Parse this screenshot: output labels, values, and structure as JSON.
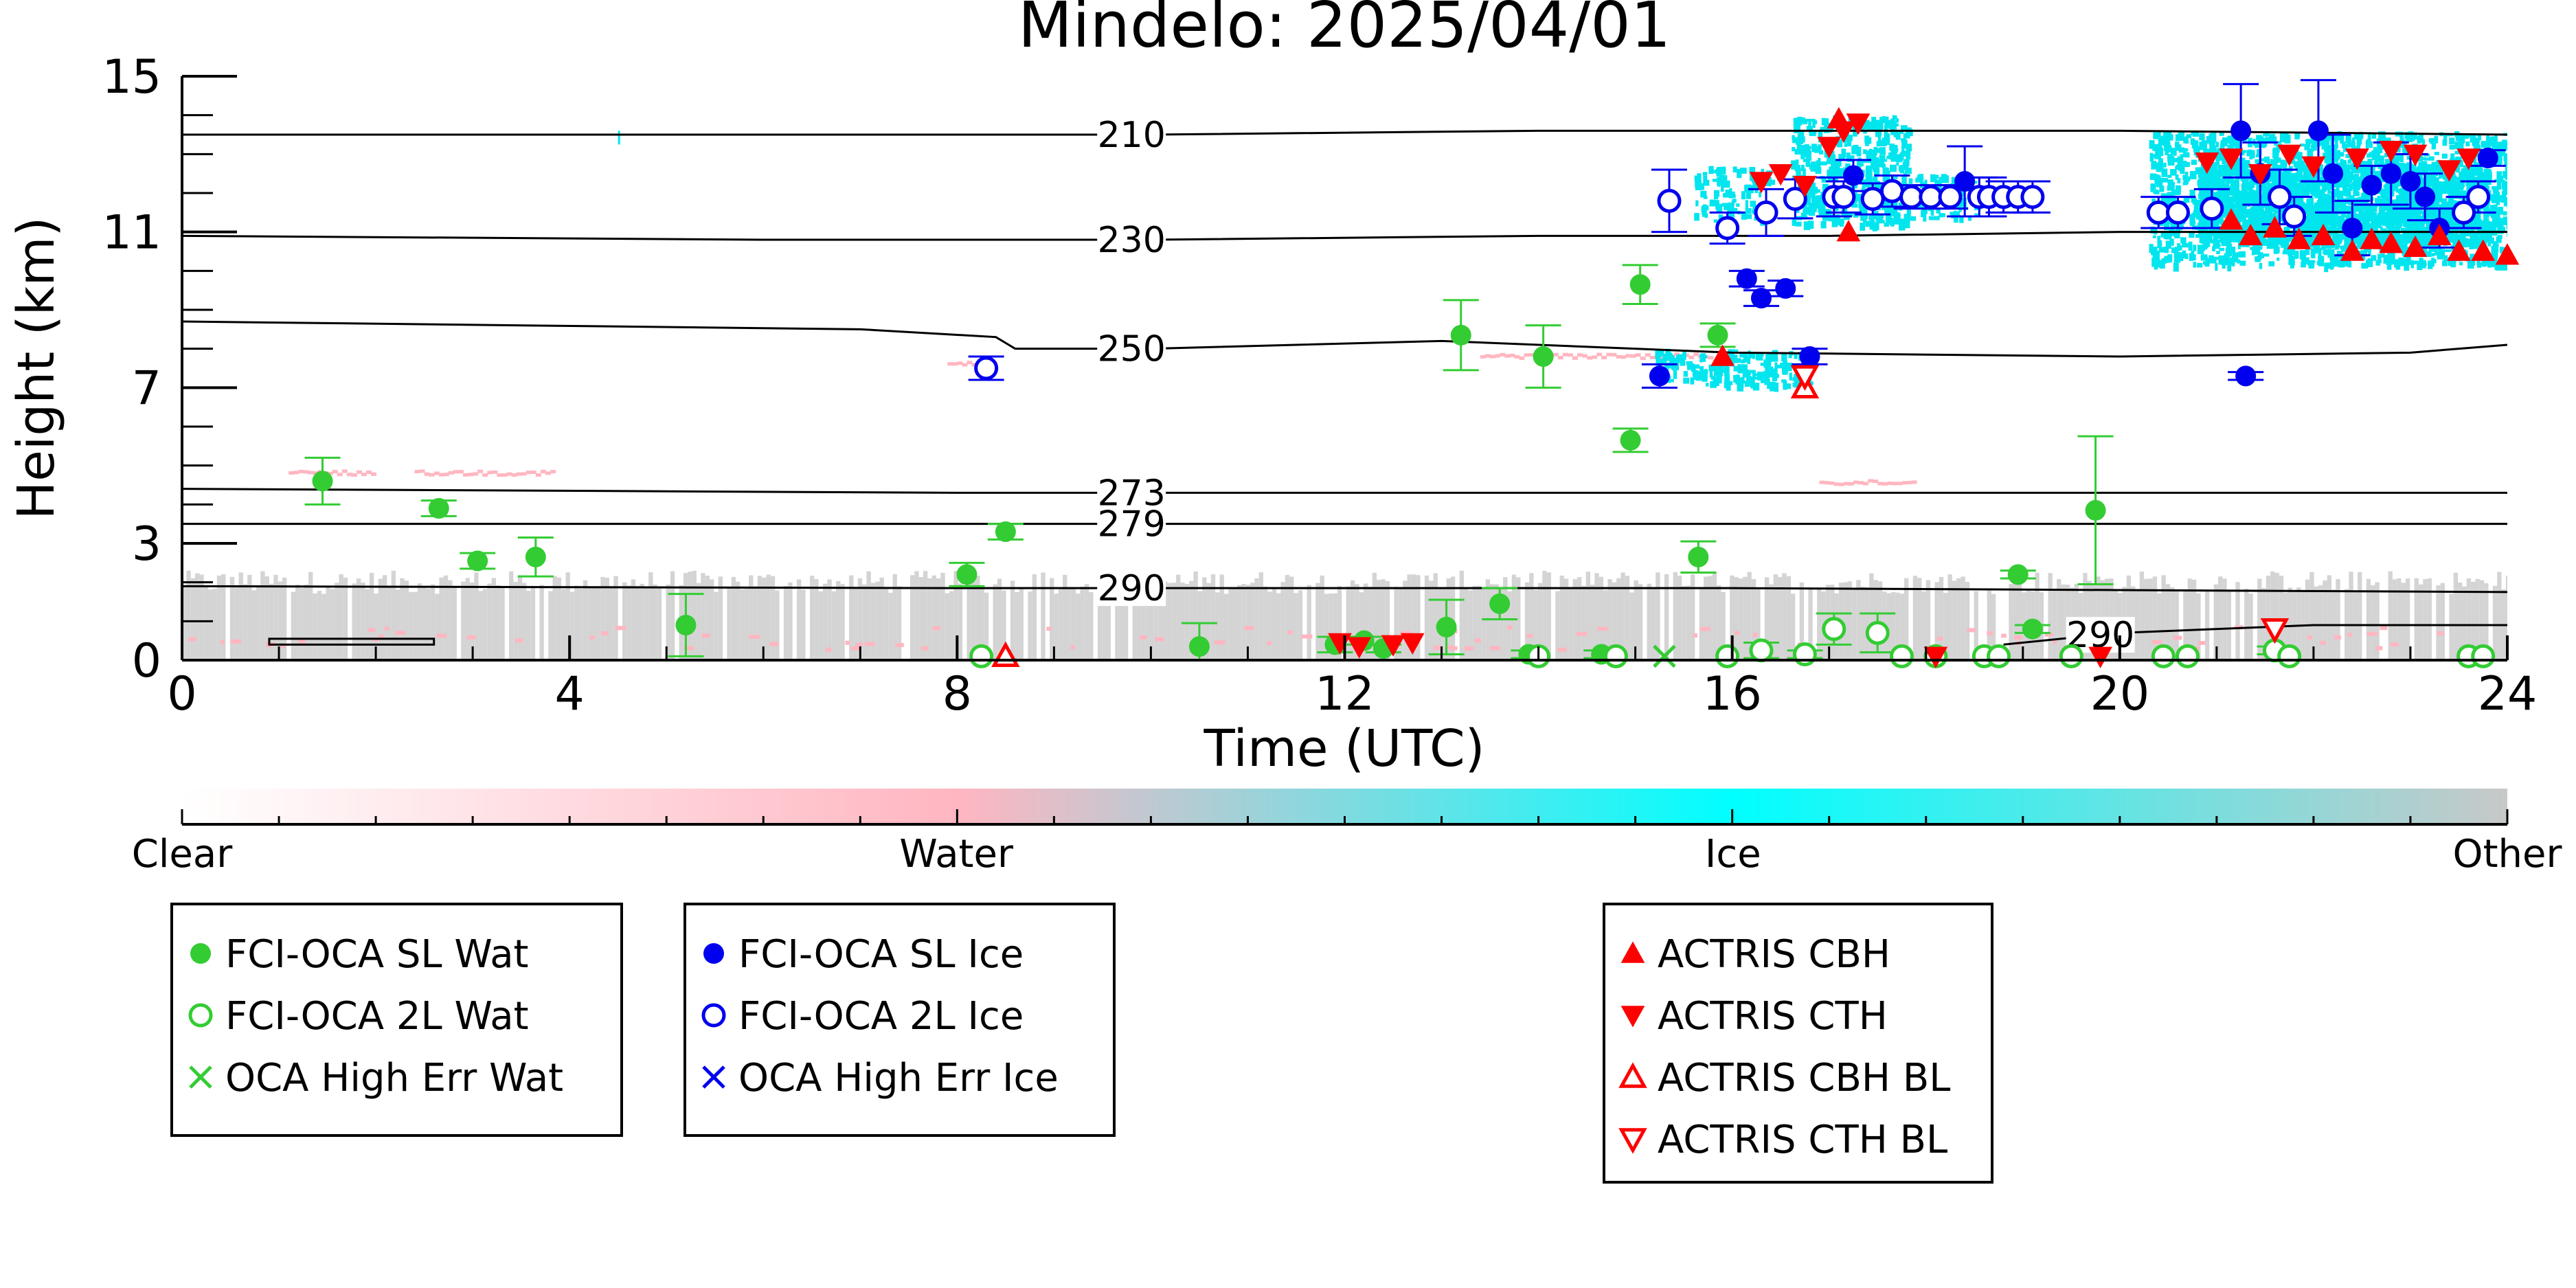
{
  "chart_data": {
    "type": "scatter",
    "title": "Mindelo: 2025/04/01",
    "xlabel": "Time (UTC)",
    "ylabel": "Height (km)",
    "xlim": [
      0,
      24
    ],
    "ylim": [
      0,
      15
    ],
    "xticks": [
      0,
      4,
      8,
      12,
      16,
      20,
      24
    ],
    "yticks": [
      0,
      3,
      7,
      11,
      15
    ],
    "grid": false,
    "colorbar": {
      "labels": [
        {
          "text": "Clear",
          "frac": 0.0
        },
        {
          "text": "Water",
          "frac": 0.333
        },
        {
          "text": "Ice",
          "frac": 0.667
        },
        {
          "text": "Other",
          "frac": 1.0
        }
      ],
      "colors": [
        "#ffffff",
        "#ffb6c1",
        "#00ffff",
        "#c8c8c8"
      ]
    },
    "colors": {
      "water": "#33cc33",
      "ice": "#0000ee",
      "actris": "#ff0000",
      "background_cloud": "#cccccc",
      "ice_cloud": "#00e5ee",
      "water_cloud": "#ffb6c1",
      "contour": "#000000"
    },
    "temperature_contours": [
      {
        "label": "210",
        "label_x": 9.8,
        "points": [
          [
            0,
            13.5
          ],
          [
            6,
            13.5
          ],
          [
            10,
            13.5
          ],
          [
            14,
            13.6
          ],
          [
            17,
            13.6
          ],
          [
            20,
            13.6
          ],
          [
            24,
            13.5
          ]
        ]
      },
      {
        "label": "230",
        "label_x": 9.8,
        "points": [
          [
            0,
            10.9
          ],
          [
            6,
            10.8
          ],
          [
            10,
            10.8
          ],
          [
            14,
            10.9
          ],
          [
            17,
            10.9
          ],
          [
            20,
            11.0
          ],
          [
            24,
            11.0
          ]
        ]
      },
      {
        "label": "250",
        "label_x": 9.8,
        "points": [
          [
            0,
            8.7
          ],
          [
            7,
            8.5
          ],
          [
            8.4,
            8.3
          ],
          [
            8.6,
            8.0
          ],
          [
            10,
            8.0
          ],
          [
            13,
            8.2
          ],
          [
            15,
            8.0
          ],
          [
            16,
            7.9
          ],
          [
            20,
            7.8
          ],
          [
            23,
            7.9
          ],
          [
            24,
            8.1
          ]
        ]
      },
      {
        "label": "273",
        "label_x": 9.8,
        "points": [
          [
            0,
            4.4
          ],
          [
            8,
            4.3
          ],
          [
            12,
            4.3
          ],
          [
            16,
            4.3
          ],
          [
            20,
            4.3
          ],
          [
            24,
            4.3
          ]
        ]
      },
      {
        "label": "279",
        "label_x": 9.8,
        "points": [
          [
            0,
            3.5
          ],
          [
            8,
            3.5
          ],
          [
            12,
            3.5
          ],
          [
            16,
            3.5
          ],
          [
            20,
            3.5
          ],
          [
            24,
            3.5
          ]
        ]
      },
      {
        "label": "290",
        "label_x": 9.8,
        "points": [
          [
            0,
            1.9
          ],
          [
            8,
            1.85
          ],
          [
            12,
            1.85
          ],
          [
            16,
            1.85
          ],
          [
            20,
            1.8
          ],
          [
            24,
            1.75
          ]
        ]
      },
      {
        "label": "290",
        "label_x": 19.8,
        "points": [
          [
            18.8,
            0.4
          ],
          [
            20,
            0.7
          ],
          [
            22,
            0.9
          ],
          [
            24,
            0.9
          ]
        ]
      }
    ],
    "series": [
      {
        "name": "FCI-OCA SL Wat",
        "marker": "filled-circle",
        "color": "#33cc33",
        "points": [
          {
            "x": 1.45,
            "y": 4.6,
            "err": 0.6
          },
          {
            "x": 2.65,
            "y": 3.9,
            "err": 0.2
          },
          {
            "x": 3.05,
            "y": 2.55,
            "err": 0.2
          },
          {
            "x": 3.65,
            "y": 2.65,
            "err": 0.5
          },
          {
            "x": 5.2,
            "y": 0.9,
            "err": 0.8
          },
          {
            "x": 8.1,
            "y": 2.2,
            "err": 0.3
          },
          {
            "x": 8.5,
            "y": 3.3,
            "err": 0.2
          },
          {
            "x": 10.5,
            "y": 0.35,
            "err": 0.6
          },
          {
            "x": 11.9,
            "y": 0.4,
            "err": 0.2
          },
          {
            "x": 12.2,
            "y": 0.5,
            "err": 0.1
          },
          {
            "x": 12.4,
            "y": 0.3,
            "err": 0.1
          },
          {
            "x": 13.05,
            "y": 0.85,
            "err": 0.7
          },
          {
            "x": 13.2,
            "y": 8.35,
            "err": 0.9
          },
          {
            "x": 13.6,
            "y": 1.45,
            "err": 0.4
          },
          {
            "x": 14.05,
            "y": 7.8,
            "err": 0.8
          },
          {
            "x": 14.95,
            "y": 5.65,
            "err": 0.3
          },
          {
            "x": 15.05,
            "y": 9.65,
            "err": 0.5
          },
          {
            "x": 15.65,
            "y": 2.65,
            "err": 0.4
          },
          {
            "x": 15.85,
            "y": 8.35,
            "err": 0.3
          },
          {
            "x": 18.95,
            "y": 2.2,
            "err": 0.1
          },
          {
            "x": 19.75,
            "y": 3.85,
            "err": 1.9
          },
          {
            "x": 19.1,
            "y": 0.8,
            "err": 0.1
          },
          {
            "x": 13.9,
            "y": 0.15,
            "err": 0.1
          },
          {
            "x": 14.65,
            "y": 0.15,
            "err": 0.1
          }
        ]
      },
      {
        "name": "FCI-OCA 2L Wat",
        "marker": "open-circle",
        "color": "#33cc33",
        "points": [
          {
            "x": 8.25,
            "y": 0.1,
            "err": 0
          },
          {
            "x": 14.0,
            "y": 0.1,
            "err": 0
          },
          {
            "x": 14.8,
            "y": 0.1,
            "err": 0
          },
          {
            "x": 15.95,
            "y": 0.1,
            "err": 0
          },
          {
            "x": 16.3,
            "y": 0.25,
            "err": 0.2
          },
          {
            "x": 16.75,
            "y": 0.15,
            "err": 0.1
          },
          {
            "x": 17.05,
            "y": 0.8,
            "err": 0.4
          },
          {
            "x": 17.5,
            "y": 0.7,
            "err": 0.5
          },
          {
            "x": 17.75,
            "y": 0.1,
            "err": 0
          },
          {
            "x": 18.1,
            "y": 0.1,
            "err": 0
          },
          {
            "x": 18.6,
            "y": 0.1,
            "err": 0
          },
          {
            "x": 18.75,
            "y": 0.1,
            "err": 0
          },
          {
            "x": 19.5,
            "y": 0.1,
            "err": 0
          },
          {
            "x": 20.45,
            "y": 0.1,
            "err": 0
          },
          {
            "x": 20.7,
            "y": 0.1,
            "err": 0
          },
          {
            "x": 21.6,
            "y": 0.25,
            "err": 0.1
          },
          {
            "x": 21.75,
            "y": 0.1,
            "err": 0
          },
          {
            "x": 23.6,
            "y": 0.1,
            "err": 0
          },
          {
            "x": 23.75,
            "y": 0.1,
            "err": 0
          }
        ]
      },
      {
        "name": "OCA High Err Wat",
        "marker": "x",
        "color": "#33cc33",
        "points": [
          {
            "x": 15.3,
            "y": 0.1
          }
        ]
      },
      {
        "name": "FCI-OCA SL Ice",
        "marker": "filled-circle",
        "color": "#0000ee",
        "points": [
          {
            "x": 15.25,
            "y": 7.3,
            "err": 0.3
          },
          {
            "x": 16.15,
            "y": 9.8,
            "err": 0.2
          },
          {
            "x": 16.3,
            "y": 9.3,
            "err": 0.2
          },
          {
            "x": 16.55,
            "y": 9.55,
            "err": 0.2
          },
          {
            "x": 16.8,
            "y": 7.8,
            "err": 0.2
          },
          {
            "x": 17.25,
            "y": 12.45,
            "err": 0.4
          },
          {
            "x": 18.4,
            "y": 12.3,
            "err": 0.9
          },
          {
            "x": 21.25,
            "y": 13.6,
            "err": 1.2
          },
          {
            "x": 21.3,
            "y": 7.3,
            "err": 0.1
          },
          {
            "x": 21.45,
            "y": 12.5,
            "err": 0.8
          },
          {
            "x": 22.05,
            "y": 13.6,
            "err": 1.3
          },
          {
            "x": 22.2,
            "y": 12.5,
            "err": 1.0
          },
          {
            "x": 22.4,
            "y": 11.1,
            "err": 0.7
          },
          {
            "x": 22.6,
            "y": 12.2,
            "err": 0.5
          },
          {
            "x": 22.8,
            "y": 12.5,
            "err": 0.8
          },
          {
            "x": 23.0,
            "y": 12.3,
            "err": 0.7
          },
          {
            "x": 23.15,
            "y": 11.9,
            "err": 0.6
          },
          {
            "x": 23.3,
            "y": 11.1,
            "err": 0.5
          },
          {
            "x": 23.8,
            "y": 12.9,
            "err": 0.2
          }
        ]
      },
      {
        "name": "FCI-OCA 2L Ice",
        "marker": "open-circle",
        "color": "#0000ee",
        "points": [
          {
            "x": 8.3,
            "y": 7.5,
            "err": 0.3
          },
          {
            "x": 15.35,
            "y": 11.8,
            "err": 0.8
          },
          {
            "x": 15.95,
            "y": 11.1,
            "err": 0.4
          },
          {
            "x": 16.35,
            "y": 11.5,
            "err": 0.6
          },
          {
            "x": 16.65,
            "y": 11.85,
            "err": 0.5
          },
          {
            "x": 17.05,
            "y": 11.9,
            "err": 0.5
          },
          {
            "x": 17.15,
            "y": 11.9,
            "err": 0.4
          },
          {
            "x": 17.45,
            "y": 11.85,
            "err": 0.4
          },
          {
            "x": 17.65,
            "y": 12.05,
            "err": 0.4
          },
          {
            "x": 17.85,
            "y": 11.9,
            "err": 0.3
          },
          {
            "x": 18.05,
            "y": 11.9,
            "err": 0.3
          },
          {
            "x": 18.25,
            "y": 11.9,
            "err": 0.3
          },
          {
            "x": 18.55,
            "y": 11.9,
            "err": 0.5
          },
          {
            "x": 18.65,
            "y": 11.9,
            "err": 0.5
          },
          {
            "x": 18.8,
            "y": 11.9,
            "err": 0.4
          },
          {
            "x": 18.95,
            "y": 11.9,
            "err": 0.4
          },
          {
            "x": 19.1,
            "y": 11.9,
            "err": 0.4
          },
          {
            "x": 20.4,
            "y": 11.5,
            "err": 0.4
          },
          {
            "x": 20.6,
            "y": 11.5,
            "err": 0.4
          },
          {
            "x": 20.95,
            "y": 11.6,
            "err": 0.5
          },
          {
            "x": 21.65,
            "y": 11.9,
            "err": 0.7
          },
          {
            "x": 21.8,
            "y": 11.4,
            "err": 0.5
          },
          {
            "x": 23.55,
            "y": 11.5,
            "err": 0.4
          },
          {
            "x": 23.7,
            "y": 11.9,
            "err": 0.4
          }
        ]
      },
      {
        "name": "ACTRIS CBH",
        "marker": "triangle-up",
        "color": "#ff0000",
        "points": [
          {
            "x": 15.9,
            "y": 7.8
          },
          {
            "x": 17.2,
            "y": 11.0
          },
          {
            "x": 21.15,
            "y": 11.3
          },
          {
            "x": 21.35,
            "y": 10.9
          },
          {
            "x": 21.6,
            "y": 11.1
          },
          {
            "x": 21.85,
            "y": 10.8
          },
          {
            "x": 22.1,
            "y": 10.9
          },
          {
            "x": 22.4,
            "y": 10.5
          },
          {
            "x": 22.6,
            "y": 10.8
          },
          {
            "x": 22.8,
            "y": 10.7
          },
          {
            "x": 23.05,
            "y": 10.6
          },
          {
            "x": 23.3,
            "y": 10.9
          },
          {
            "x": 23.5,
            "y": 10.5
          },
          {
            "x": 23.75,
            "y": 10.5
          },
          {
            "x": 24.0,
            "y": 10.4
          },
          {
            "x": 17.1,
            "y": 13.9
          }
        ]
      },
      {
        "name": "ACTRIS CTH",
        "marker": "triangle-down",
        "color": "#ff0000",
        "points": [
          {
            "x": 11.95,
            "y": 0.45
          },
          {
            "x": 12.15,
            "y": 0.35
          },
          {
            "x": 12.5,
            "y": 0.4
          },
          {
            "x": 12.7,
            "y": 0.45
          },
          {
            "x": 16.3,
            "y": 12.3
          },
          {
            "x": 16.5,
            "y": 12.5
          },
          {
            "x": 16.75,
            "y": 12.2
          },
          {
            "x": 17.0,
            "y": 13.2
          },
          {
            "x": 17.15,
            "y": 13.6
          },
          {
            "x": 17.3,
            "y": 13.8
          },
          {
            "x": 20.9,
            "y": 12.8
          },
          {
            "x": 21.15,
            "y": 12.9
          },
          {
            "x": 21.45,
            "y": 12.5
          },
          {
            "x": 21.75,
            "y": 13.0
          },
          {
            "x": 22.0,
            "y": 12.7
          },
          {
            "x": 22.45,
            "y": 12.9
          },
          {
            "x": 22.8,
            "y": 13.1
          },
          {
            "x": 23.05,
            "y": 13.0
          },
          {
            "x": 23.4,
            "y": 12.6
          },
          {
            "x": 23.6,
            "y": 12.9
          },
          {
            "x": 18.1,
            "y": 0.1
          },
          {
            "x": 19.8,
            "y": 0.1
          }
        ]
      },
      {
        "name": "ACTRIS CBH BL",
        "marker": "open-triangle-up",
        "color": "#ff0000",
        "points": [
          {
            "x": 16.75,
            "y": 7.0
          },
          {
            "x": 8.5,
            "y": 0.1
          }
        ]
      },
      {
        "name": "ACTRIS CTH BL",
        "marker": "open-triangle-down",
        "color": "#ff0000",
        "points": [
          {
            "x": 16.75,
            "y": 7.3
          },
          {
            "x": 21.6,
            "y": 0.8
          }
        ]
      }
    ],
    "legends": [
      {
        "entries": [
          "FCI-OCA SL Wat",
          "FCI-OCA 2L Wat",
          "OCA High Err Wat"
        ]
      },
      {
        "entries": [
          "FCI-OCA SL Ice",
          "FCI-OCA 2L Ice",
          "OCA High Err Ice"
        ]
      },
      {
        "entries": [
          "ACTRIS CBH",
          "ACTRIS CTH",
          "ACTRIS CBH BL",
          "ACTRIS CTH BL"
        ]
      }
    ],
    "legend_markers": {
      "FCI-OCA SL Wat": [
        "filled-circle",
        "#33cc33"
      ],
      "FCI-OCA 2L Wat": [
        "open-circle",
        "#33cc33"
      ],
      "OCA High Err Wat": [
        "x",
        "#33cc33"
      ],
      "FCI-OCA SL Ice": [
        "filled-circle",
        "#0000ee"
      ],
      "FCI-OCA 2L Ice": [
        "open-circle",
        "#0000ee"
      ],
      "OCA High Err Ice": [
        "x",
        "#0000ee"
      ],
      "ACTRIS CBH": [
        "triangle-up",
        "#ff0000"
      ],
      "ACTRIS CTH": [
        "triangle-down",
        "#ff0000"
      ],
      "ACTRIS CBH BL": [
        "open-triangle-up",
        "#ff0000"
      ],
      "ACTRIS CTH BL": [
        "open-triangle-down",
        "#ff0000"
      ]
    }
  }
}
